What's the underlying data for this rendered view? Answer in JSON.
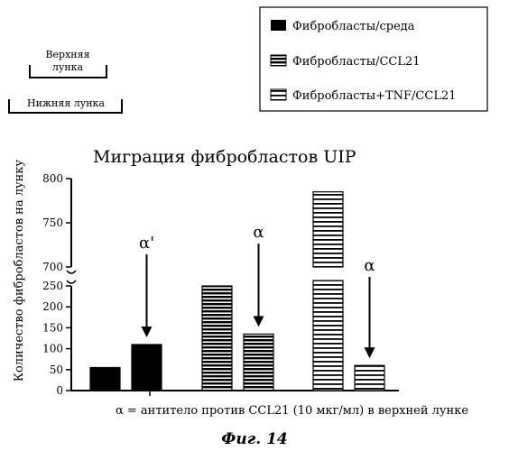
{
  "diagram": {
    "upper_well_label_line1": "Верхняя",
    "upper_well_label_line2": "лунка",
    "lower_well_label": "Нижняя лунка"
  },
  "legend": {
    "items": [
      {
        "label": "Фибробласты/среда",
        "pattern": "solid"
      },
      {
        "label": "Фибробласты/CCL21",
        "pattern": "dense-hatch"
      },
      {
        "label": "Фибробласты+TNF/CCL21",
        "pattern": "light-hatch"
      }
    ]
  },
  "chart_data": {
    "type": "bar",
    "title": "Миграция фибробластов UIP",
    "ylabel": "Количество фибробластов на лунку",
    "xlabel": "",
    "axis": "broken",
    "lower_segment": {
      "ylim": [
        0,
        250
      ],
      "ticks": [
        0,
        50,
        100,
        150,
        200,
        250
      ]
    },
    "upper_segment": {
      "ylim": [
        700,
        800
      ],
      "ticks": [
        700,
        750,
        800
      ]
    },
    "legend_position": "top-right",
    "grid": false,
    "series": [
      {
        "name": "Фибробласты/среда",
        "pattern": "solid",
        "values": [
          55,
          110
        ]
      },
      {
        "name": "Фибробласты/CCL21",
        "pattern": "dense-hatch",
        "values": [
          250,
          135
        ]
      },
      {
        "name": "Фибробласты+TNF/CCL21",
        "pattern": "light-hatch",
        "values": [
          785,
          60
        ]
      }
    ],
    "annotations": [
      {
        "label": "α'",
        "series": 0,
        "index": 1
      },
      {
        "label": "α",
        "series": 1,
        "index": 1
      },
      {
        "label": "α",
        "series": 2,
        "index": 1
      }
    ]
  },
  "footnote": "α = антитело против CCL21 (10 мкг/мл) в верхней лунке",
  "figure_caption": "Фиг. 14"
}
